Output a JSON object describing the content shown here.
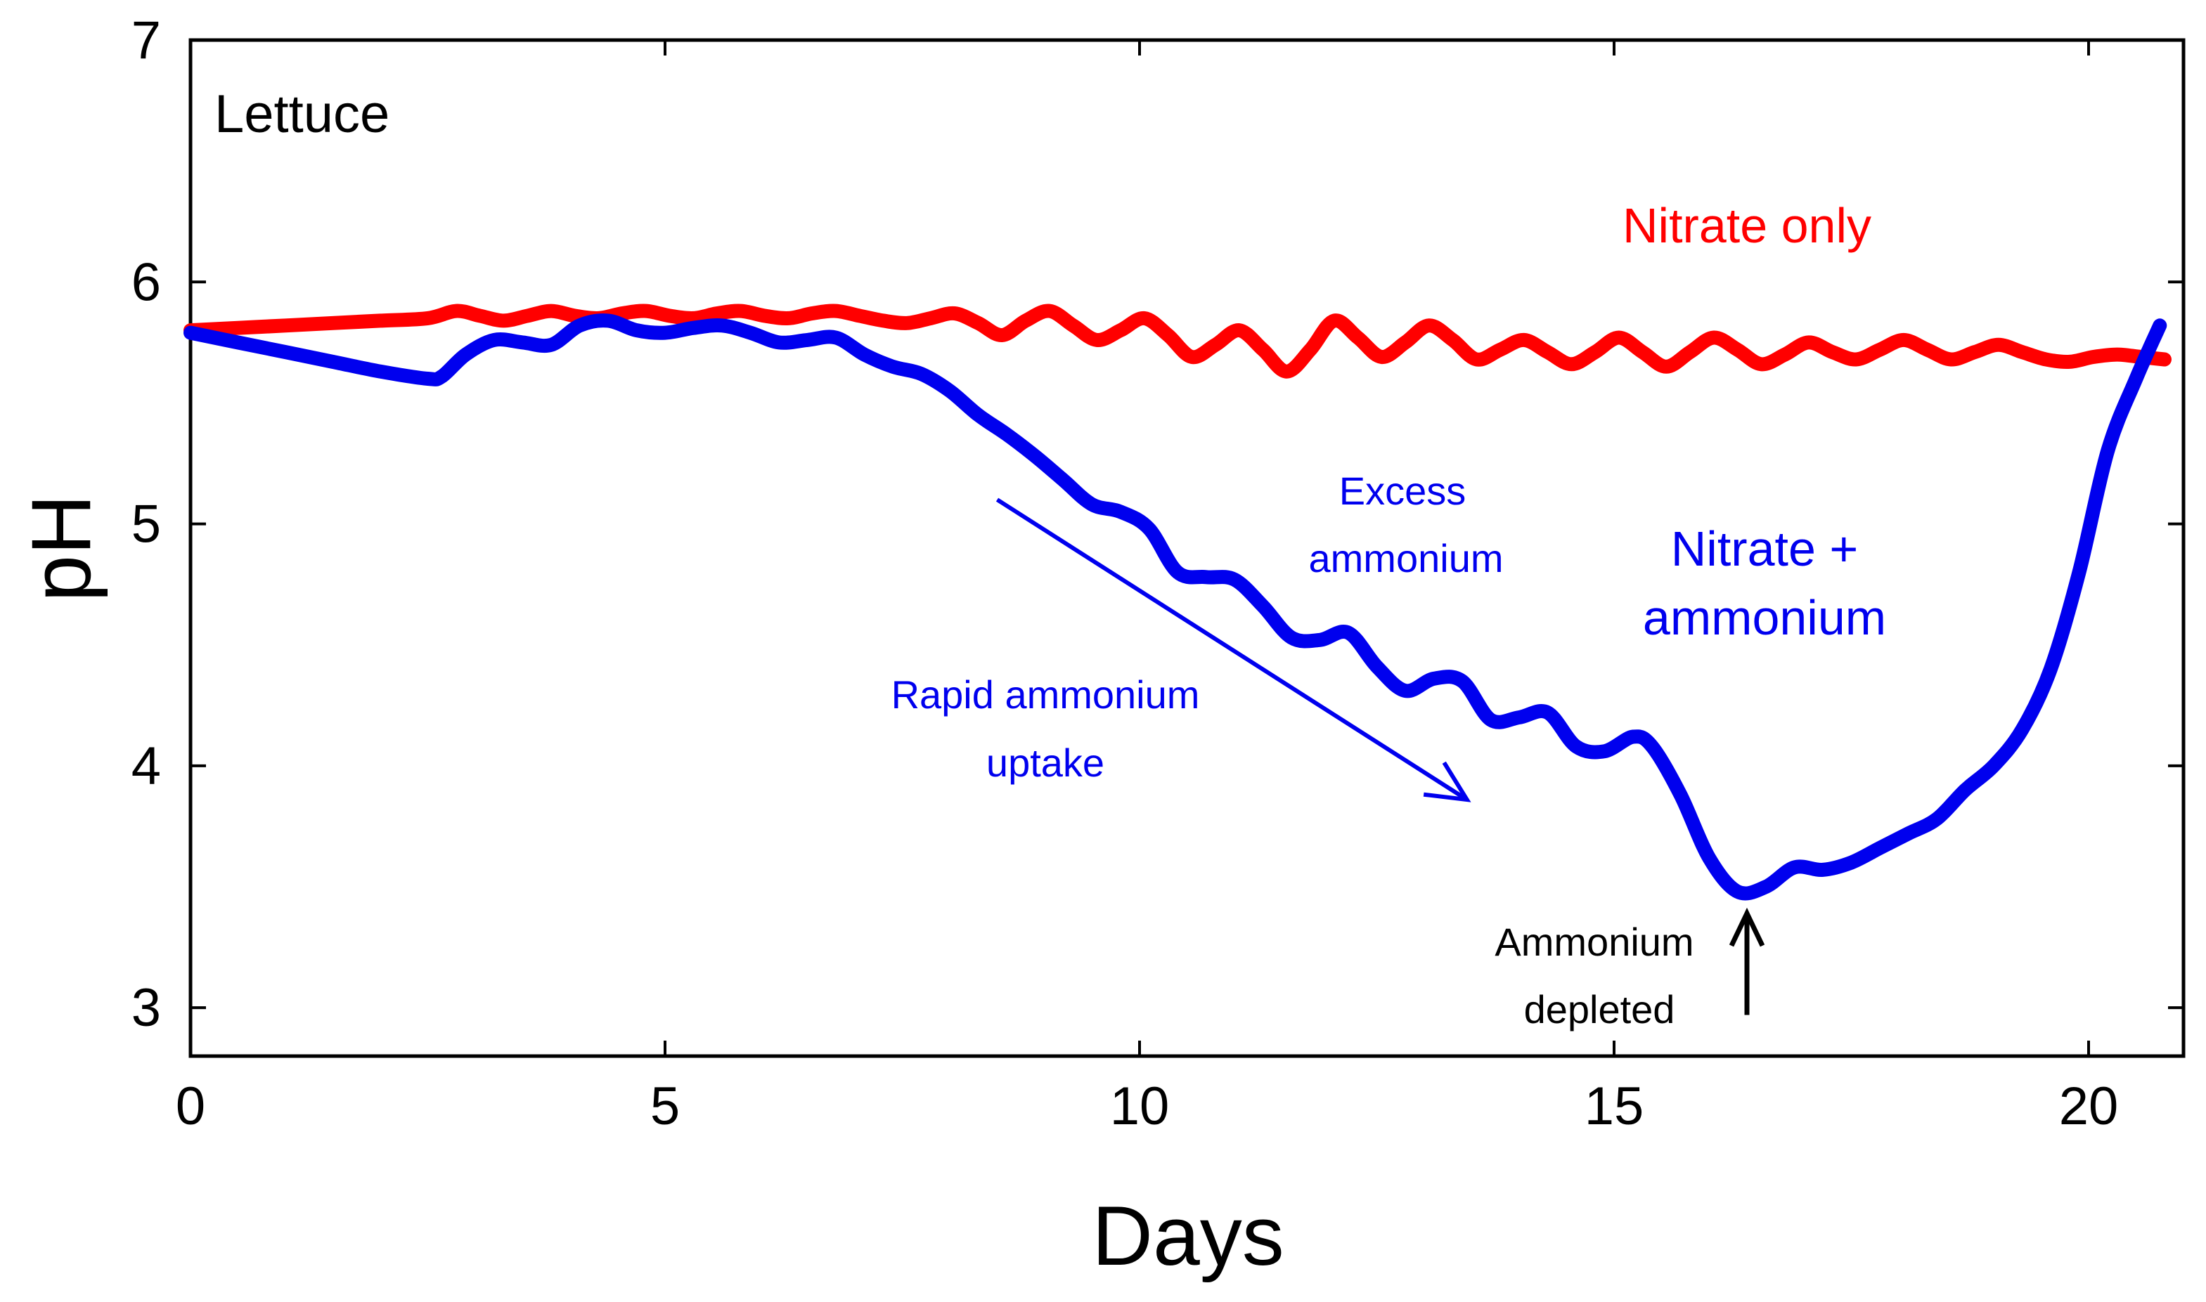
{
  "chart_data": {
    "type": "line",
    "title": "Lettuce",
    "xlabel": "Days",
    "ylabel": "pH",
    "xlim": [
      0,
      21
    ],
    "ylim": [
      2.8,
      7
    ],
    "xticks": [
      0,
      5,
      10,
      15,
      20
    ],
    "yticks": [
      3,
      4,
      5,
      6,
      7
    ],
    "grid": false,
    "series": [
      {
        "name": "Nitrate only",
        "color": "#ff0000",
        "x": [
          0,
          0.5,
          1,
          1.5,
          2,
          2.5,
          2.8,
          3.05,
          3.3,
          3.55,
          3.8,
          4.05,
          4.3,
          4.55,
          4.8,
          5.05,
          5.3,
          5.55,
          5.8,
          6.05,
          6.3,
          6.55,
          6.8,
          7.05,
          7.3,
          7.55,
          7.8,
          8.05,
          8.3,
          8.55,
          8.8,
          9.05,
          9.3,
          9.55,
          9.8,
          10.05,
          10.3,
          10.55,
          10.8,
          11.05,
          11.3,
          11.55,
          11.8,
          12.05,
          12.3,
          12.55,
          12.8,
          13.05,
          13.3,
          13.55,
          13.8,
          14.05,
          14.3,
          14.55,
          14.8,
          15.05,
          15.3,
          15.55,
          15.8,
          16.05,
          16.3,
          16.55,
          16.8,
          17.05,
          17.3,
          17.55,
          17.8,
          18.05,
          18.3,
          18.55,
          18.8,
          19.05,
          19.3,
          19.55,
          19.8,
          20.05,
          20.3,
          20.55,
          20.8
        ],
        "y": [
          5.8,
          5.81,
          5.82,
          5.83,
          5.84,
          5.85,
          5.88,
          5.86,
          5.84,
          5.86,
          5.88,
          5.86,
          5.85,
          5.87,
          5.88,
          5.86,
          5.85,
          5.87,
          5.88,
          5.86,
          5.85,
          5.87,
          5.88,
          5.86,
          5.84,
          5.83,
          5.85,
          5.87,
          5.83,
          5.78,
          5.84,
          5.88,
          5.82,
          5.76,
          5.8,
          5.85,
          5.78,
          5.69,
          5.74,
          5.8,
          5.72,
          5.63,
          5.72,
          5.84,
          5.77,
          5.69,
          5.75,
          5.82,
          5.76,
          5.68,
          5.72,
          5.76,
          5.71,
          5.66,
          5.71,
          5.77,
          5.71,
          5.65,
          5.71,
          5.77,
          5.72,
          5.66,
          5.7,
          5.75,
          5.71,
          5.68,
          5.72,
          5.76,
          5.72,
          5.68,
          5.71,
          5.74,
          5.71,
          5.68,
          5.67,
          5.69,
          5.7,
          5.69,
          5.68
        ]
      },
      {
        "name": "Nitrate + ammonium",
        "color": "#0000ee",
        "x": [
          0,
          0.5,
          1,
          1.5,
          2,
          2.5,
          2.65,
          2.9,
          3.2,
          3.5,
          3.8,
          4.1,
          4.4,
          4.7,
          5.0,
          5.3,
          5.6,
          5.9,
          6.2,
          6.5,
          6.8,
          7.1,
          7.4,
          7.7,
          8.0,
          8.3,
          8.6,
          8.9,
          9.2,
          9.5,
          9.8,
          10.1,
          10.4,
          10.7,
          11.0,
          11.3,
          11.6,
          11.9,
          12.2,
          12.5,
          12.8,
          13.1,
          13.4,
          13.7,
          14.0,
          14.3,
          14.6,
          14.9,
          15.2,
          15.4,
          15.7,
          16.0,
          16.3,
          16.6,
          16.9,
          17.2,
          17.5,
          17.8,
          18.1,
          18.4,
          18.7,
          19.0,
          19.3,
          19.6,
          19.9,
          20.2,
          20.5,
          20.75
        ],
        "y": [
          5.79,
          5.75,
          5.71,
          5.67,
          5.63,
          5.6,
          5.61,
          5.7,
          5.76,
          5.75,
          5.74,
          5.82,
          5.84,
          5.8,
          5.79,
          5.81,
          5.82,
          5.79,
          5.75,
          5.76,
          5.77,
          5.7,
          5.65,
          5.62,
          5.55,
          5.45,
          5.37,
          5.28,
          5.18,
          5.08,
          5.05,
          4.98,
          4.8,
          4.78,
          4.77,
          4.66,
          4.53,
          4.52,
          4.55,
          4.41,
          4.31,
          4.36,
          4.35,
          4.19,
          4.2,
          4.22,
          4.08,
          4.06,
          4.12,
          4.08,
          3.88,
          3.62,
          3.48,
          3.5,
          3.58,
          3.57,
          3.6,
          3.66,
          3.72,
          3.78,
          3.9,
          4.0,
          4.15,
          4.4,
          4.8,
          5.3,
          5.6,
          5.82
        ]
      }
    ],
    "annotations": {
      "nitrate_only_label": "Nitrate only",
      "mixed_label_line1": "Nitrate +",
      "mixed_label_line2": "ammonium",
      "excess_line1": "Excess",
      "excess_line2": "ammonium",
      "rapid_line1": "Rapid ammonium",
      "rapid_line2": "uptake",
      "depleted_line1": "Ammonium",
      "depleted_line2": "depleted"
    },
    "arrows": {
      "rapid_uptake": {
        "from": [
          8.5,
          5.1
        ],
        "to": [
          13.45,
          3.86
        ]
      },
      "ammonium_depleted": {
        "from": [
          16.4,
          2.97
        ],
        "to": [
          16.4,
          3.39
        ]
      }
    }
  }
}
